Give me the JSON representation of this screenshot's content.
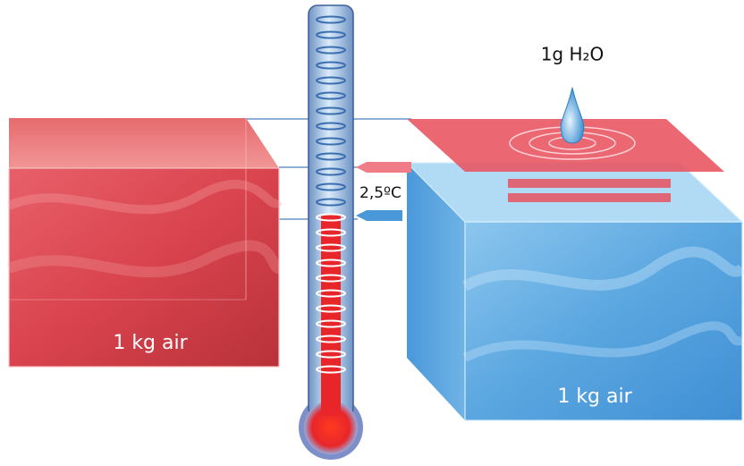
{
  "labels": {
    "water": "1g H₂O",
    "temperature": "2,5ºC",
    "warm_air": "1 kg air",
    "cool_air": "1 kg air"
  }
}
